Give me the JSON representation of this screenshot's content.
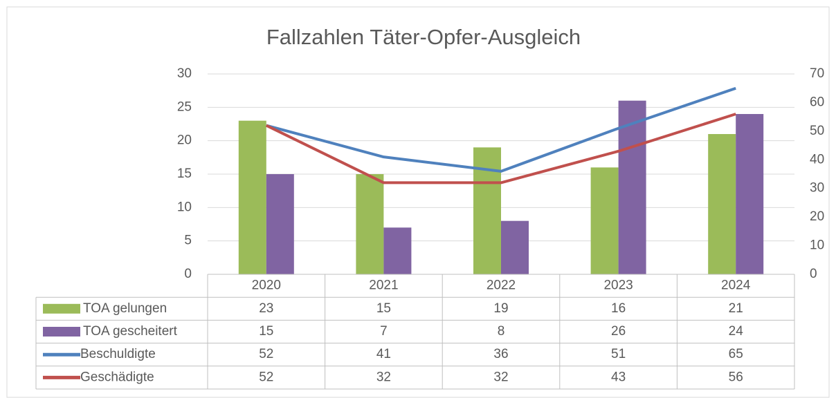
{
  "chart_data": {
    "type": "bar",
    "title": "Fallzahlen Täter-Opfer-Ausgleich",
    "categories": [
      "2020",
      "2021",
      "2022",
      "2023",
      "2024"
    ],
    "series": [
      {
        "name": "TOA gelungen",
        "type": "bar",
        "color": "#9bbb59",
        "values": [
          23,
          15,
          19,
          16,
          21
        ]
      },
      {
        "name": "TOA gescheitert",
        "type": "bar",
        "color": "#8064a2",
        "values": [
          15,
          7,
          8,
          26,
          24
        ]
      },
      {
        "name": "Beschuldigte",
        "type": "line",
        "axis": "y2",
        "color": "#4f81bd",
        "values": [
          52,
          41,
          36,
          51,
          65
        ]
      },
      {
        "name": "Geschädigte",
        "type": "line",
        "axis": "y2",
        "color": "#c0504d",
        "values": [
          52,
          32,
          32,
          43,
          56
        ]
      }
    ],
    "ylim": [
      0,
      30
    ],
    "yticks": [
      0,
      5,
      10,
      15,
      20,
      25,
      30
    ],
    "y2lim": [
      0,
      70
    ],
    "y2ticks": [
      0,
      10,
      20,
      30,
      40,
      50,
      60,
      70
    ],
    "grid": true,
    "data_table": true
  }
}
